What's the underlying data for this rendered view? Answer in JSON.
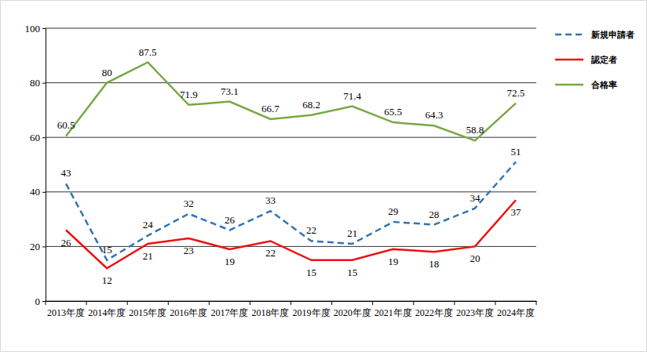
{
  "chart_data": {
    "type": "line",
    "categories": [
      "2013年度",
      "2014年度",
      "2015年度",
      "2016年度",
      "2017年度",
      "2018年度",
      "2019年度",
      "2020年度",
      "2021年度",
      "2022年度",
      "2023年度",
      "2024年度"
    ],
    "series": [
      {
        "name": "新規申請者",
        "color": "#2e75b6",
        "line_style": "dashed",
        "values": [
          43,
          15,
          24,
          32,
          26,
          33,
          22,
          21,
          29,
          28,
          34,
          51
        ]
      },
      {
        "name": "認定者",
        "color": "#ee1111",
        "line_style": "solid",
        "values": [
          26,
          12,
          21,
          23,
          19,
          22,
          15,
          15,
          19,
          18,
          20,
          37
        ]
      },
      {
        "name": "合格率",
        "color": "#77a846",
        "line_style": "solid",
        "values": [
          60.5,
          80,
          87.5,
          71.9,
          73.1,
          66.7,
          68.2,
          71.4,
          65.5,
          64.3,
          58.8,
          72.5
        ]
      }
    ],
    "ylim": [
      0,
      100
    ],
    "yticks": [
      0,
      20,
      40,
      60,
      80,
      100
    ],
    "grid": true,
    "legend": "right",
    "data_labels": true
  }
}
